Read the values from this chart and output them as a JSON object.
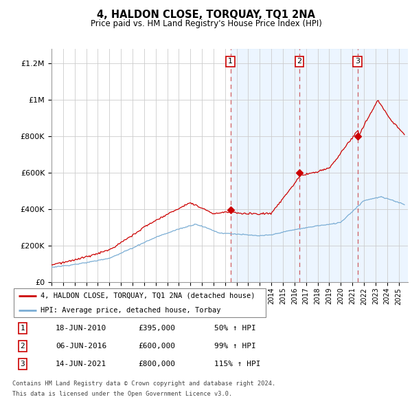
{
  "title": "4, HALDON CLOSE, TORQUAY, TQ1 2NA",
  "subtitle": "Price paid vs. HM Land Registry's House Price Index (HPI)",
  "ylabel_ticks": [
    "£0",
    "£200K",
    "£400K",
    "£600K",
    "£800K",
    "£1M",
    "£1.2M"
  ],
  "ytick_values": [
    0,
    200000,
    400000,
    600000,
    800000,
    1000000,
    1200000
  ],
  "ylim": [
    0,
    1280000
  ],
  "xlim_start": 1995.0,
  "xlim_end": 2025.8,
  "red_line_label": "4, HALDON CLOSE, TORQUAY, TQ1 2NA (detached house)",
  "blue_line_label": "HPI: Average price, detached house, Torbay",
  "sale_dates": [
    2010.46,
    2016.43,
    2021.45
  ],
  "sale_prices": [
    395000,
    600000,
    800000
  ],
  "sale_labels": [
    "1",
    "2",
    "3"
  ],
  "sale_display": [
    {
      "num": "1",
      "date": "18-JUN-2010",
      "price": "£395,000",
      "pct": "50% ↑ HPI"
    },
    {
      "num": "2",
      "date": "06-JUN-2016",
      "price": "£600,000",
      "pct": "99% ↑ HPI"
    },
    {
      "num": "3",
      "date": "14-JUN-2021",
      "price": "£800,000",
      "pct": "115% ↑ HPI"
    }
  ],
  "footer": [
    "Contains HM Land Registry data © Crown copyright and database right 2024.",
    "This data is licensed under the Open Government Licence v3.0."
  ],
  "background_shading": [
    {
      "xstart": 2010.46,
      "xend": 2016.43
    },
    {
      "xstart": 2016.43,
      "xend": 2021.45
    },
    {
      "xstart": 2021.45,
      "xend": 2025.8
    }
  ],
  "red_color": "#cc0000",
  "blue_color": "#7aadd4",
  "grid_color": "#cccccc",
  "shade_color": "#ddeeff"
}
